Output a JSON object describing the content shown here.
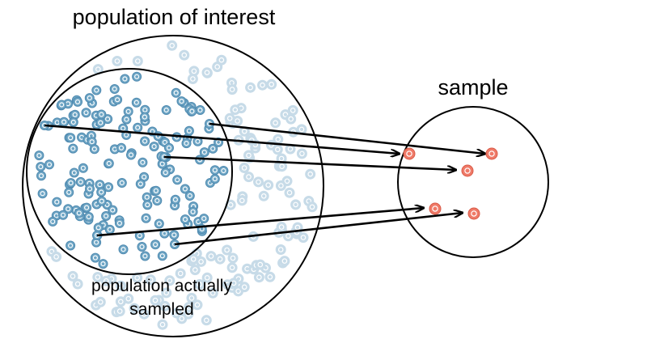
{
  "labels": {
    "population_of_interest": "population of interest",
    "sample": "sample",
    "sampled_line1": "population actually",
    "sampled_line2": "sampled"
  },
  "colors": {
    "outline": "#000000",
    "population_point": "#6fa6c5",
    "population_point_faded": "#c7dbe8",
    "sample_point": "#ef7a68",
    "arrow": "#000000"
  },
  "counts": {
    "sampled_points": 160,
    "unsampled_points": 130,
    "sample_points": 5,
    "arrows": 5
  }
}
